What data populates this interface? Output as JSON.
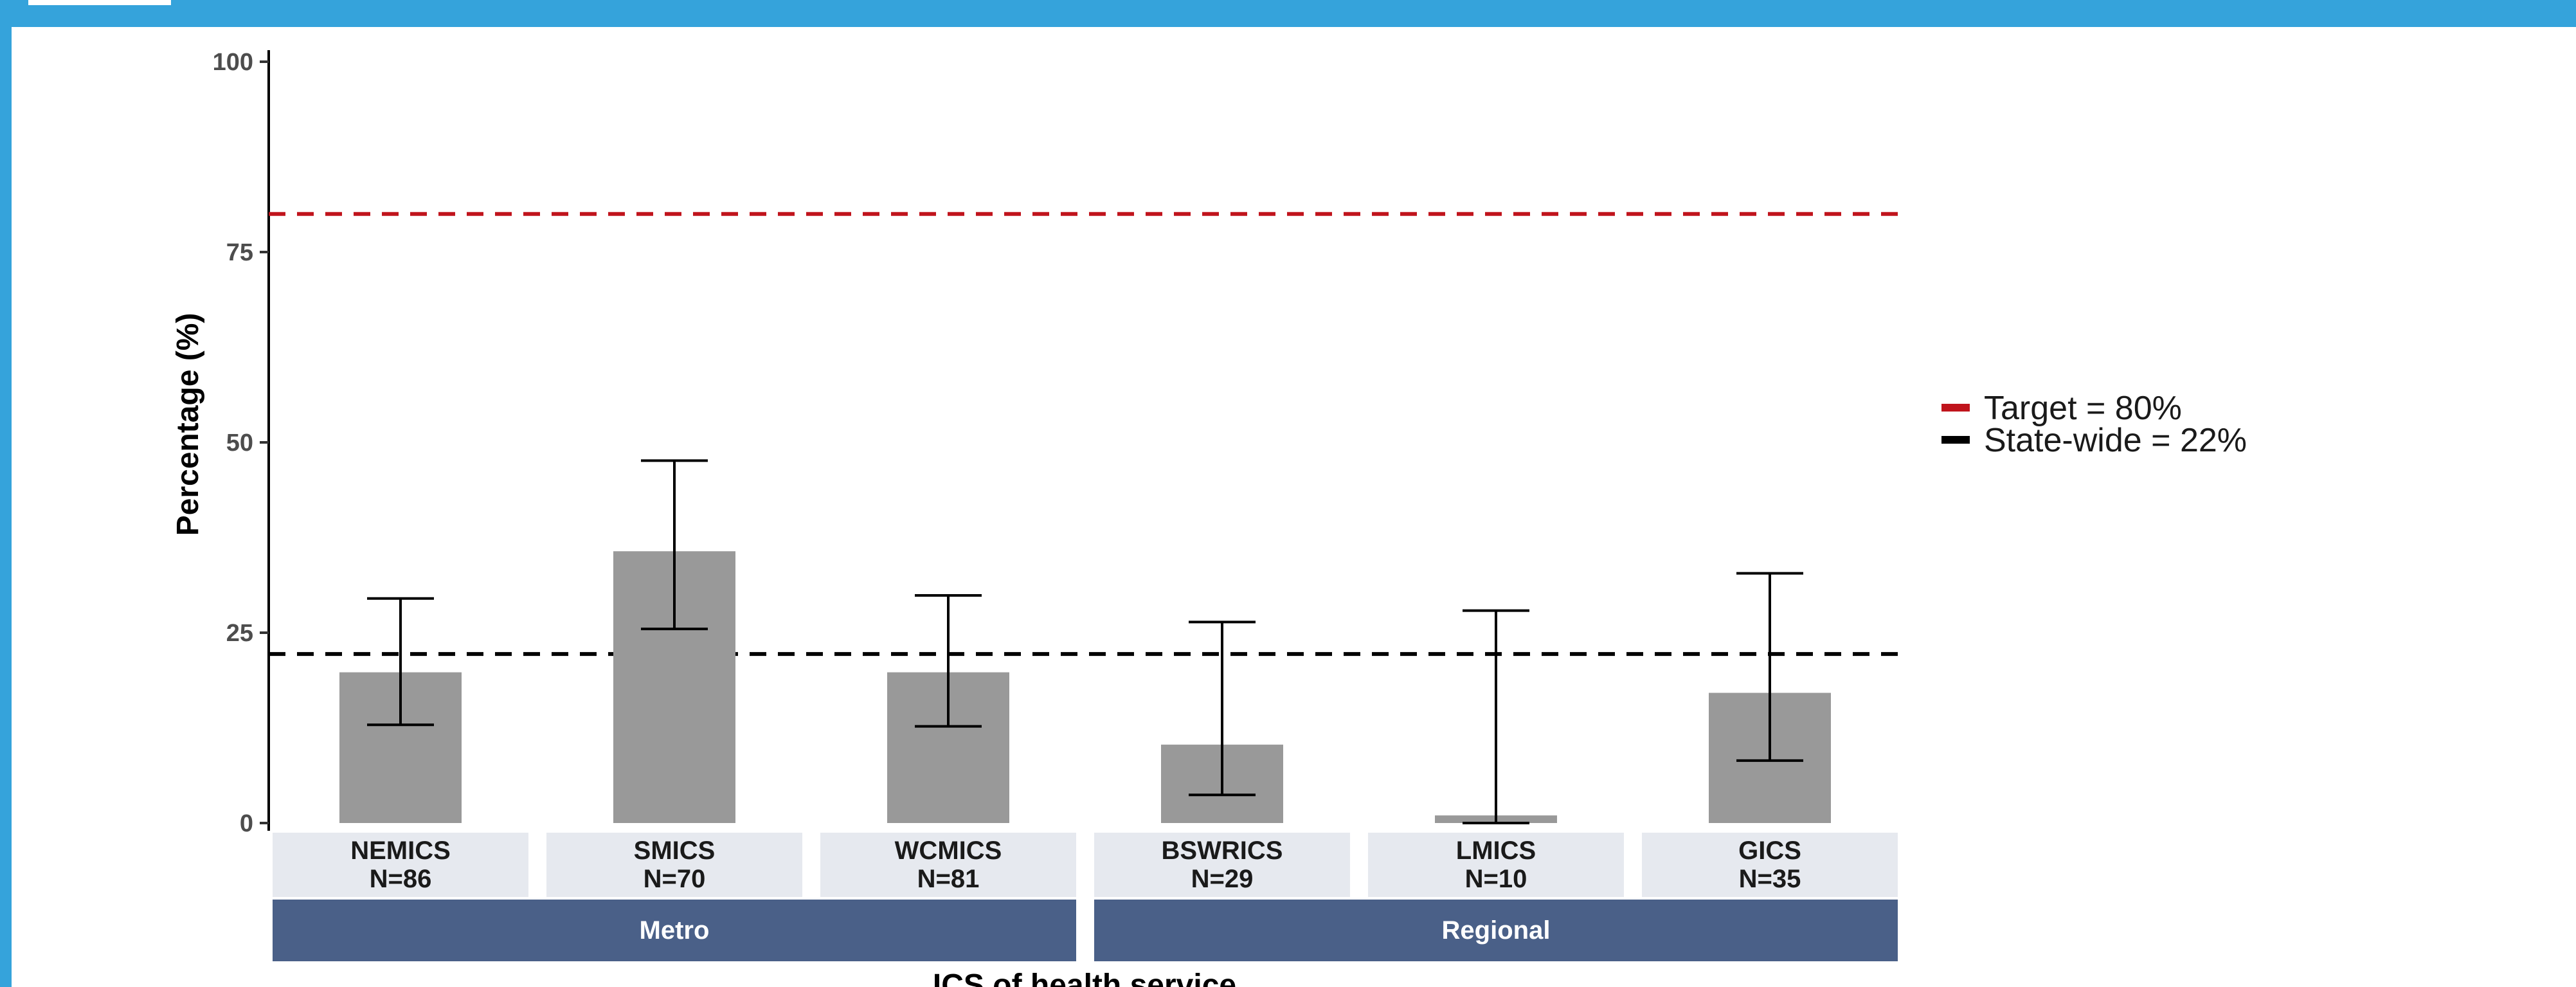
{
  "chart_data": {
    "type": "bar",
    "title": "",
    "xlabel": "ICS of health service",
    "ylabel": "Percentage (%)",
    "ylim": [
      0,
      100
    ],
    "yticks": [
      0,
      25,
      50,
      75,
      100
    ],
    "grid": false,
    "legend_position": "right",
    "categories": [
      "NEMICS",
      "SMICS",
      "WCMICS",
      "BSWRICS",
      "LMICS",
      "GICS"
    ],
    "n_labels": [
      "N=86",
      "N=70",
      "N=81",
      "N=29",
      "N=10",
      "N=35"
    ],
    "groups": [
      {
        "label": "Metro",
        "categories": [
          "NEMICS",
          "SMICS",
          "WCMICS"
        ]
      },
      {
        "label": "Regional",
        "categories": [
          "BSWRICS",
          "LMICS",
          "GICS"
        ]
      }
    ],
    "series": [
      {
        "values": [
          19.8,
          35.7,
          19.8,
          10.3,
          1.0,
          17.1
        ],
        "ci_lower": [
          12.9,
          25.5,
          12.7,
          3.7,
          0.0,
          8.2
        ],
        "ci_upper": [
          29.5,
          47.6,
          29.9,
          26.4,
          27.9,
          32.8
        ],
        "color": "#999999"
      }
    ],
    "reference_lines": [
      {
        "label": "Target = 80%",
        "value": 80,
        "color": "#c0141c",
        "style": "dashed"
      },
      {
        "label": "State-wide = 22%",
        "value": 22.2,
        "color": "#000000",
        "style": "dashed"
      }
    ],
    "colors": {
      "frame": "#35a3db",
      "category_strip": "#e6e9ef",
      "group_strip": "#4a6088"
    }
  }
}
